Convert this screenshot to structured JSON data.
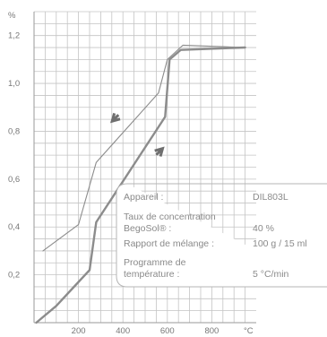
{
  "chart_data": {
    "type": "line",
    "x_unit": "°C",
    "y_unit": "%",
    "xlim": [
      0,
      1000
    ],
    "ylim": [
      0,
      1.3
    ],
    "x_ticks": [
      {
        "value": 200,
        "label": "200"
      },
      {
        "value": 400,
        "label": "400"
      },
      {
        "value": 600,
        "label": "600"
      },
      {
        "value": 800,
        "label": "800"
      }
    ],
    "y_ticks": [
      {
        "value": 0.2,
        "label": "0,2"
      },
      {
        "value": 0.4,
        "label": "0,4"
      },
      {
        "value": 0.6,
        "label": "0,6"
      },
      {
        "value": 0.8,
        "label": "0,8"
      },
      {
        "value": 1.0,
        "label": "1,0"
      },
      {
        "value": 1.2,
        "label": "1,2"
      }
    ],
    "grid": true,
    "series": [
      {
        "style": "thin",
        "color": "#8c8c8c",
        "x": [
          40,
          200,
          280,
          560,
          600,
          670,
          950
        ],
        "y": [
          0.3,
          0.41,
          0.67,
          0.96,
          1.1,
          1.16,
          1.15
        ]
      },
      {
        "style": "thick",
        "color": "#8c8c8c",
        "x": [
          10,
          100,
          180,
          250,
          280,
          590,
          610,
          660,
          950
        ],
        "y": [
          0.0,
          0.07,
          0.15,
          0.22,
          0.42,
          0.86,
          1.1,
          1.14,
          1.15
        ]
      }
    ],
    "arrows": [
      {
        "direction": "down-left",
        "x": 360,
        "y": 0.85
      },
      {
        "direction": "up-right",
        "x": 570,
        "y": 0.72
      }
    ],
    "info_box": {
      "rows": [
        {
          "label": "Appareil :",
          "value": "DIL803L"
        },
        {
          "label": "Taux de concentration",
          "value": ""
        },
        {
          "label": "BegoSol® :",
          "value": "40 %"
        },
        {
          "label": "Rapport de mélange :",
          "value": "100 g / 15 ml"
        },
        {
          "label": "Programme de",
          "value": ""
        },
        {
          "label": "température :",
          "value": "5 °C/min"
        }
      ]
    },
    "colors": {
      "grid": "#c4c4c4",
      "line": "#8c8c8c",
      "arrow": "#6f6f6f",
      "text": "#777777"
    }
  }
}
